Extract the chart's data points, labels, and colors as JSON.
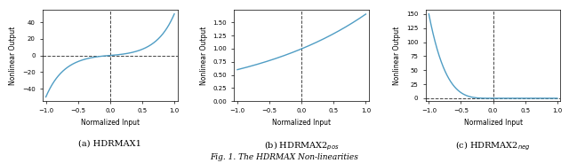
{
  "fig_width": 6.4,
  "fig_height": 1.84,
  "dpi": 100,
  "line_color": "#4f9dc4",
  "line_width": 1.0,
  "dashed_color": "#444444",
  "dashed_lw": 0.7,
  "xlabel": "Normalized Input",
  "ylabel": "Nonlinear Output",
  "caption": "Fig. 1. The HDRMAX Non-linearities",
  "subplot_labels": [
    "(a) HDRMAX1",
    "(b) HDRMAX2$_{pos}$",
    "(c) HDRMAX2$_{neg}$"
  ],
  "tick_fontsize": 5.0,
  "label_fontsize": 5.5,
  "caption_fontsize": 6.5,
  "sublabel_fontsize": 7.0
}
